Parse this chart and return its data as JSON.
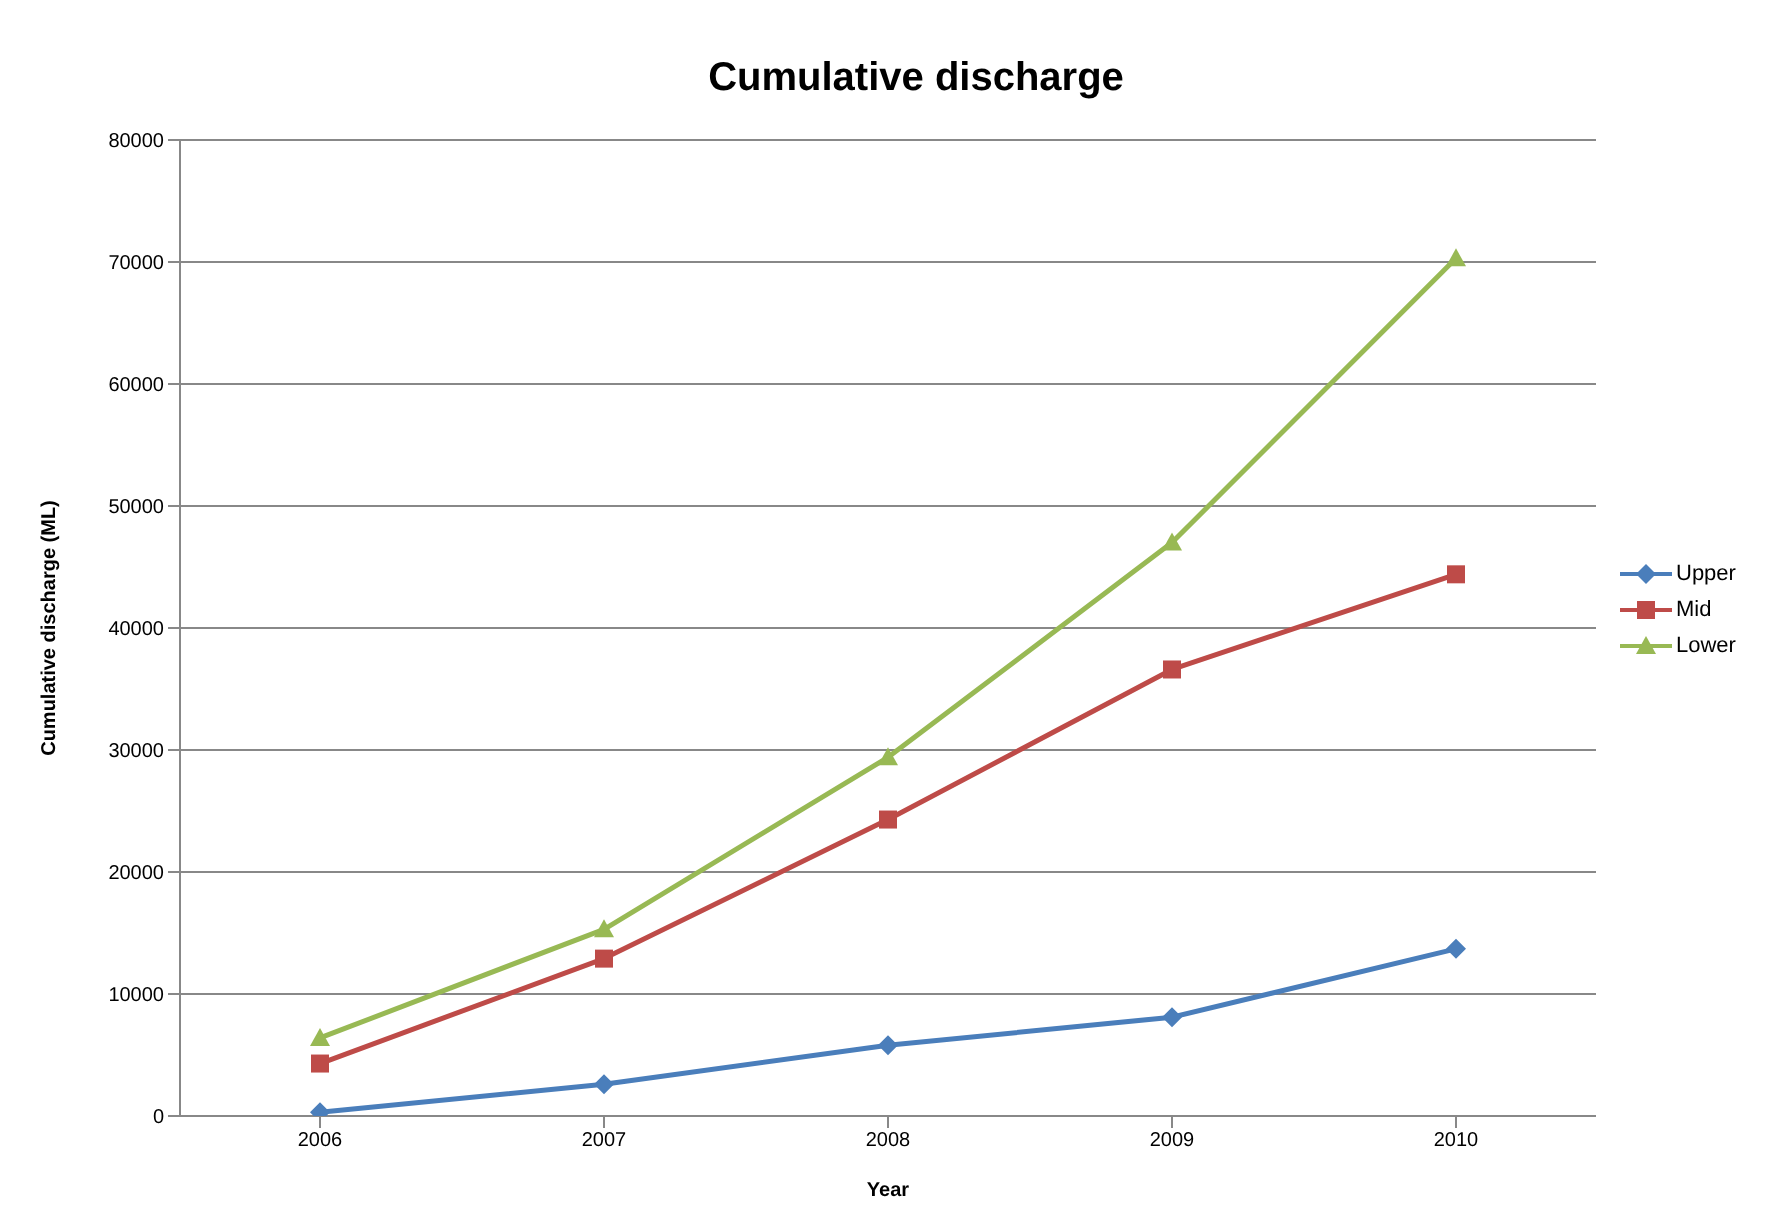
{
  "chart_data": {
    "type": "line",
    "title": "Cumulative discharge",
    "xlabel": "Year",
    "ylabel": "Cumulative discharge (ML)",
    "categories": [
      "2006",
      "2007",
      "2008",
      "2009",
      "2010"
    ],
    "series": [
      {
        "name": "Upper",
        "color": "#4a7ebb",
        "marker": "diamond",
        "values": [
          300,
          2600,
          5800,
          8100,
          13700
        ]
      },
      {
        "name": "Mid",
        "color": "#be4b48",
        "marker": "square",
        "values": [
          4300,
          12900,
          24300,
          36600,
          44400
        ]
      },
      {
        "name": "Lower",
        "color": "#98b954",
        "marker": "triangle",
        "values": [
          6400,
          15300,
          29400,
          47000,
          70300
        ]
      }
    ],
    "ylim": [
      0,
      80000
    ],
    "yticks": [
      0,
      10000,
      20000,
      30000,
      40000,
      50000,
      60000,
      70000,
      80000
    ],
    "grid": "y",
    "legend": "right",
    "line_style": "solid"
  }
}
